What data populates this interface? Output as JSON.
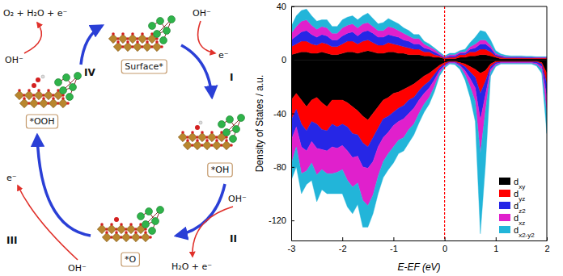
{
  "diagram": {
    "states": [
      {
        "label": "Surface*"
      },
      {
        "label": "*OH"
      },
      {
        "label": "*O"
      },
      {
        "label": "*OOH"
      }
    ],
    "steps": [
      {
        "label": "I",
        "in": "OH⁻",
        "out": "e⁻"
      },
      {
        "label": "II",
        "in": "OH⁻",
        "out": "H₂O + e⁻"
      },
      {
        "label": "III",
        "in": "OH⁻",
        "out": "e⁻"
      },
      {
        "label": "IV",
        "in": "OH⁻",
        "out": "O₂ + H₂O + e⁻"
      }
    ]
  },
  "chart_data": {
    "type": "area",
    "stacked": true,
    "x_label": "E-EF (eV)",
    "y_label": "Density of States / a.u.",
    "xlim": [
      -3,
      2
    ],
    "xticks": [
      -3,
      -2,
      -1,
      0,
      1,
      2
    ],
    "ylim": [
      -135,
      40
    ],
    "yticks": [
      -120,
      -80,
      -40,
      0,
      40
    ],
    "reference_line_x": 0,
    "legend": "lower right",
    "x": [
      -3,
      -2.9,
      -2.8,
      -2.7,
      -2.6,
      -2.5,
      -2.4,
      -2.3,
      -2.2,
      -2.1,
      -2,
      -1.9,
      -1.8,
      -1.7,
      -1.6,
      -1.5,
      -1.4,
      -1.3,
      -1.2,
      -1.1,
      -1,
      -0.9,
      -0.8,
      -0.7,
      -0.6,
      -0.5,
      -0.4,
      -0.3,
      -0.2,
      -0.1,
      0,
      0.1,
      0.2,
      0.3,
      0.4,
      0.5,
      0.6,
      0.7,
      0.8,
      0.9,
      1,
      1.1,
      1.2,
      1.3,
      1.4,
      1.5,
      1.6,
      1.7,
      1.8,
      1.9,
      2
    ],
    "series": [
      {
        "name": "dxy",
        "color": "#000000",
        "values": [
          4,
          5,
          6,
          6,
          5,
          5,
          6,
          5,
          4,
          4,
          5,
          6,
          6,
          5,
          6,
          7,
          6,
          5,
          5,
          6,
          6,
          5,
          5,
          4,
          4,
          4,
          3,
          3,
          2,
          2,
          1,
          1,
          1,
          2,
          2,
          3,
          3,
          4,
          4,
          3,
          2,
          1,
          1,
          1,
          1,
          1,
          1,
          1,
          1,
          1,
          1
        ],
        "values_down": [
          -30,
          -25,
          -30,
          -35,
          -30,
          -28,
          -32,
          -35,
          -30,
          -30,
          -30,
          -32,
          -35,
          -38,
          -42,
          -45,
          -40,
          -35,
          -30,
          -28,
          -25,
          -24,
          -22,
          -20,
          -18,
          -15,
          -12,
          -10,
          -7,
          -4,
          -2,
          -1,
          -1,
          -2,
          -3,
          -5,
          -7,
          -10,
          -8,
          -3,
          -1,
          -1,
          -1,
          -1,
          -1,
          -1,
          -1,
          -1,
          -1,
          -2,
          -10
        ]
      },
      {
        "name": "dyz",
        "color": "#ff0000",
        "values": [
          6,
          7,
          8,
          8,
          7,
          6,
          7,
          7,
          6,
          6,
          7,
          8,
          8,
          7,
          8,
          8,
          7,
          6,
          6,
          7,
          6,
          6,
          5,
          5,
          4,
          4,
          3,
          3,
          2,
          1,
          0.5,
          1,
          1,
          2,
          2,
          3,
          3,
          4,
          4,
          3,
          1,
          1,
          0.5,
          0.5,
          0.5,
          0.5,
          0.5,
          0.5,
          0.5,
          0.5,
          0.5
        ],
        "values_down": [
          -15,
          -12,
          -18,
          -18,
          -16,
          -20,
          -20,
          -18,
          -18,
          -20,
          -18,
          -18,
          -20,
          -18,
          -20,
          -20,
          -18,
          -16,
          -14,
          -14,
          -14,
          -12,
          -12,
          -10,
          -10,
          -8,
          -7,
          -6,
          -4,
          -2,
          -1,
          -0.5,
          -0.5,
          -1,
          -2,
          -4,
          -6,
          -15,
          -8,
          -2,
          -1,
          -0.5,
          -0.5,
          -0.5,
          -0.5,
          -0.5,
          -0.5,
          -0.5,
          -0.5,
          -1,
          -8
        ]
      },
      {
        "name": "dz2",
        "color": "#2626e6",
        "values": [
          5,
          6,
          7,
          8,
          7,
          6,
          6,
          6,
          5,
          5,
          6,
          6,
          7,
          6,
          7,
          7,
          7,
          6,
          6,
          6,
          6,
          6,
          5,
          5,
          4,
          4,
          3,
          2,
          2,
          1,
          0.5,
          1,
          1,
          1,
          1,
          2,
          3,
          4,
          4,
          3,
          1,
          1,
          0.5,
          0.5,
          0.5,
          0.5,
          0.5,
          0.5,
          0.3,
          0.3,
          0.3
        ],
        "values_down": [
          -15,
          -13,
          -17,
          -15,
          -15,
          -18,
          -15,
          -15,
          -17,
          -16,
          -16,
          -18,
          -18,
          -16,
          -18,
          -16,
          -18,
          -14,
          -14,
          -12,
          -10,
          -10,
          -10,
          -10,
          -8,
          -7,
          -6,
          -5,
          -4,
          -2,
          -1,
          -0.5,
          -0.5,
          -1,
          -3,
          -5,
          -8,
          -20,
          -10,
          -2,
          -1,
          -0.5,
          -0.5,
          -0.5,
          -0.5,
          -0.5,
          -0.5,
          -0.5,
          -1,
          -2,
          -10
        ]
      },
      {
        "name": "dxz",
        "color": "#e020cc",
        "values": [
          5,
          7,
          8,
          8,
          7,
          6,
          6,
          6,
          5,
          5,
          6,
          6,
          6,
          6,
          6,
          6,
          5,
          5,
          5,
          6,
          6,
          5,
          5,
          4,
          4,
          4,
          3,
          2,
          2,
          1,
          0.5,
          1,
          1,
          1,
          1,
          2,
          3,
          3,
          3,
          2,
          1,
          0.5,
          0.5,
          0.5,
          0.5,
          0.5,
          0.3,
          0.3,
          0.3,
          0.3,
          0.3
        ],
        "values_down": [
          -18,
          -15,
          -20,
          -15,
          -16,
          -20,
          -15,
          -17,
          -20,
          -18,
          -18,
          -22,
          -22,
          -20,
          -25,
          -28,
          -25,
          -22,
          -18,
          -16,
          -16,
          -14,
          -14,
          -12,
          -12,
          -10,
          -8,
          -7,
          -5,
          -2,
          -1,
          -0.5,
          -0.5,
          -1,
          -3,
          -6,
          -10,
          -25,
          -12,
          -2,
          -1,
          -0.5,
          -0.5,
          -0.5,
          -0.5,
          -0.5,
          -0.5,
          -0.5,
          -1,
          -2,
          -12
        ]
      },
      {
        "name": "dx2-y2",
        "color": "#22b5d9",
        "values": [
          5,
          8,
          8,
          8,
          7,
          6,
          5,
          6,
          5,
          5,
          6,
          6,
          6,
          6,
          6,
          7,
          6,
          5,
          6,
          6,
          5,
          5,
          4,
          4,
          3,
          3,
          2,
          2,
          1,
          1,
          0.5,
          1,
          1,
          1,
          2,
          3,
          5,
          7,
          6,
          4,
          2,
          1,
          1,
          0.5,
          0.5,
          0.5,
          0.5,
          0.5,
          0.3,
          0.3,
          0.3
        ],
        "values_down": [
          -12,
          -15,
          -15,
          -10,
          -13,
          -20,
          -15,
          -15,
          -15,
          -16,
          -18,
          -20,
          -20,
          -16,
          -20,
          -16,
          -14,
          -13,
          -12,
          -12,
          -12,
          -10,
          -10,
          -10,
          -8,
          -7,
          -6,
          -5,
          -4,
          -2,
          -1,
          -0.5,
          -1,
          -2,
          -4,
          -8,
          -15,
          -60,
          -40,
          -3,
          -1,
          -0.5,
          -0.5,
          -0.5,
          -0.5,
          -0.5,
          -0.5,
          -0.5,
          -1,
          -3,
          -15
        ]
      }
    ]
  }
}
